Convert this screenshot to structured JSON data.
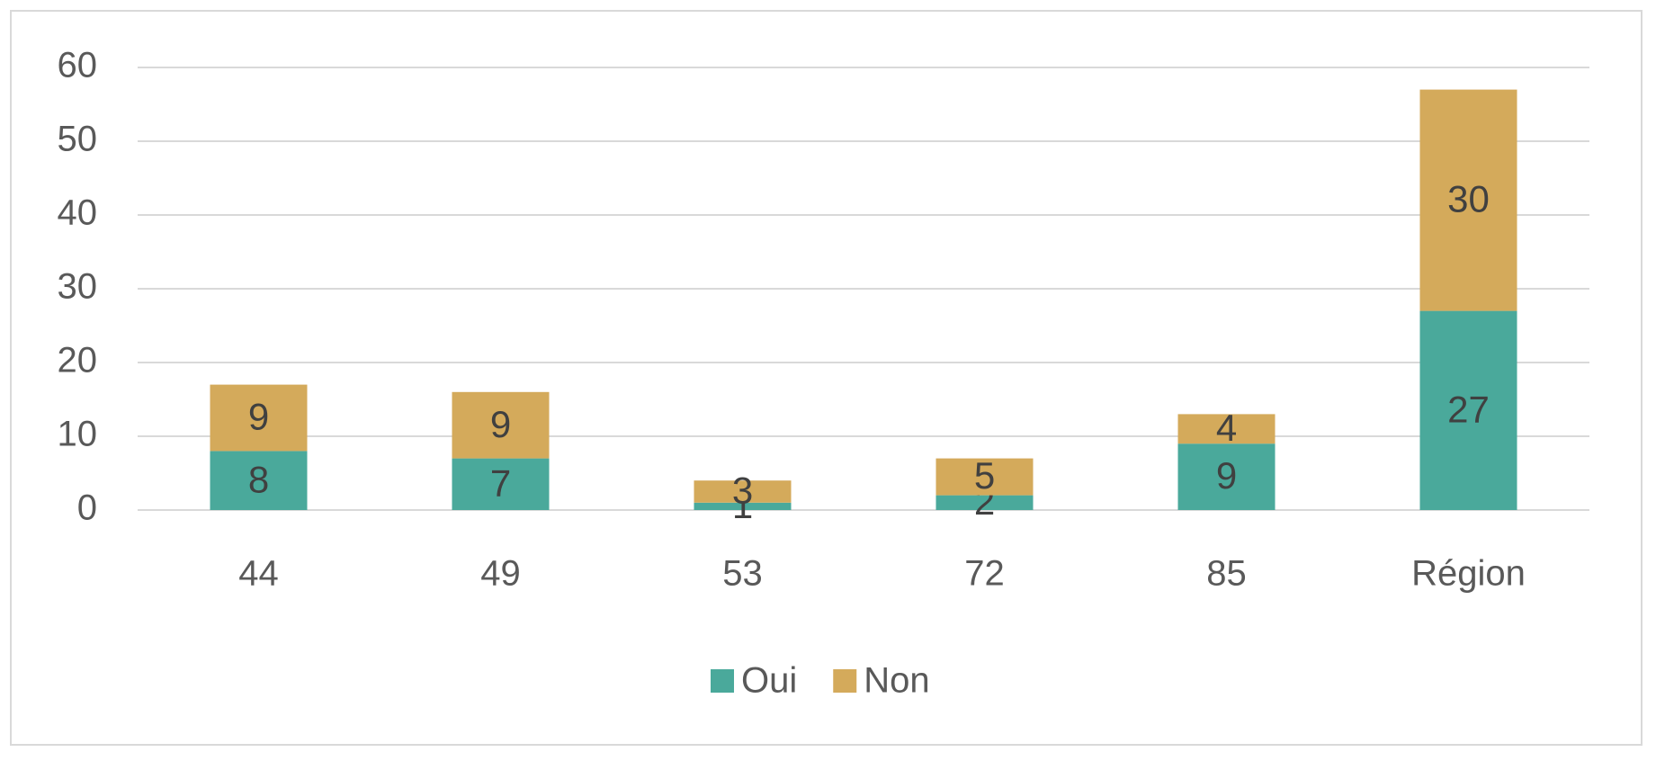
{
  "chart_data": {
    "type": "stacked_bar",
    "categories": [
      "44",
      "49",
      "53",
      "72",
      "85",
      "Région"
    ],
    "series": [
      {
        "name": "Oui",
        "color": "#4aa99b",
        "values": [
          8,
          7,
          1,
          2,
          9,
          27
        ]
      },
      {
        "name": "Non",
        "color": "#d4aa5b",
        "values": [
          9,
          9,
          3,
          5,
          4,
          30
        ]
      }
    ],
    "ylim": [
      0,
      60
    ],
    "yticks": [
      0,
      10,
      20,
      30,
      40,
      50,
      60
    ],
    "grid": true,
    "legend": "bottom"
  }
}
